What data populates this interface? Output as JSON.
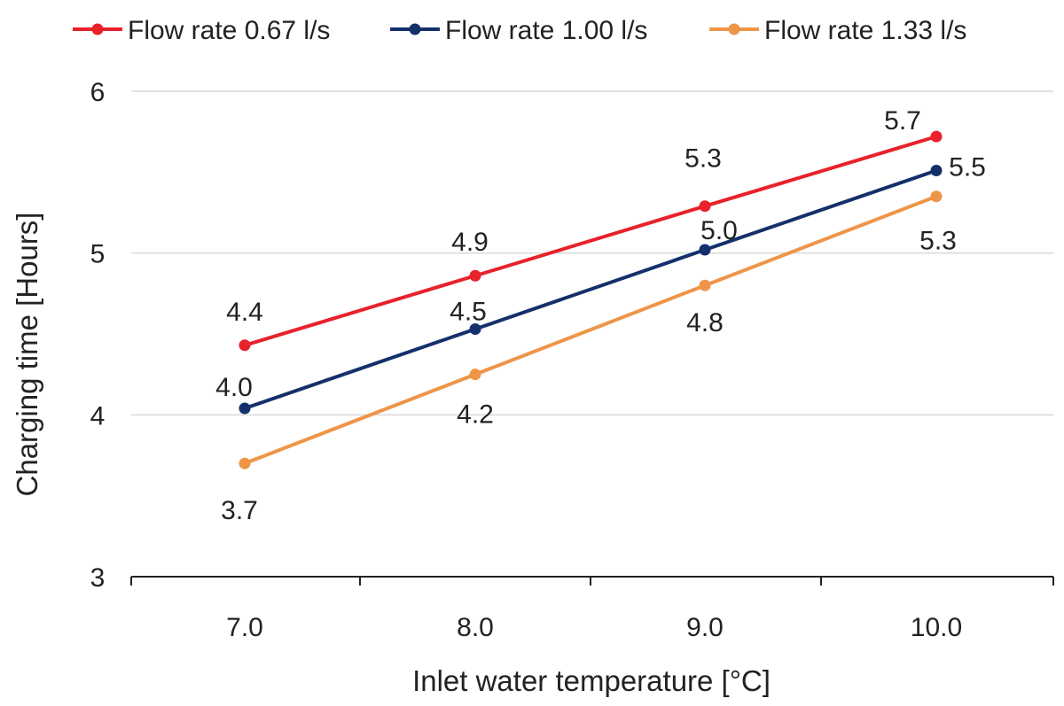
{
  "chart_data": {
    "type": "line",
    "title": "",
    "xlabel": "Inlet water temperature [°C]",
    "ylabel": "Charging time [Hours]",
    "x": [
      7.0,
      8.0,
      9.0,
      10.0
    ],
    "x_tick_labels": [
      "7.0",
      "8.0",
      "9.0",
      "10.0"
    ],
    "ylim": [
      3,
      6
    ],
    "y_ticks": [
      3,
      4,
      5,
      6
    ],
    "y_tick_labels": [
      "3",
      "4",
      "5",
      "6"
    ],
    "grid": true,
    "legend_position": "top",
    "series": [
      {
        "name": "Flow rate 0.67 l/s",
        "color": "#e8212a",
        "values": [
          4.43,
          4.86,
          5.29,
          5.72
        ],
        "labels": [
          "4.4",
          "4.9",
          "5.3",
          "5.7"
        ]
      },
      {
        "name": "Flow rate 1.00 l/s",
        "color": "#14306b",
        "values": [
          4.04,
          4.53,
          5.02,
          5.51
        ],
        "labels": [
          "4.0",
          "4.5",
          "5.0",
          "5.5"
        ]
      },
      {
        "name": "Flow rate 1.33 l/s",
        "color": "#ee9548",
        "values": [
          3.7,
          4.25,
          4.8,
          5.35
        ],
        "labels": [
          "3.7",
          "4.2",
          "4.8",
          "5.3"
        ]
      }
    ]
  }
}
